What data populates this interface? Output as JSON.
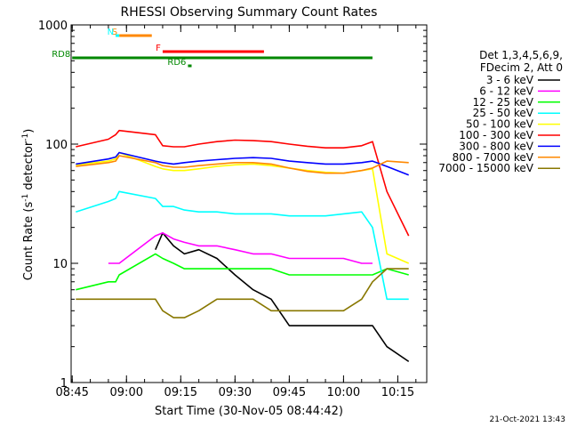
{
  "chart_data": {
    "type": "line",
    "title": "RHESSI Observing Summary Count Rates",
    "xlabel": "Start Time (30-Nov-05 08:44:42)",
    "ylabel": "Count Rate (s-1 detector-1)",
    "ylabel_parts": [
      "Count Rate (s",
      "-1",
      " detector",
      "-1",
      ")"
    ],
    "yscale": "log",
    "xlim": [
      "08:44:42",
      "10:23:00"
    ],
    "ylim": [
      1,
      1000
    ],
    "x_ticks": [
      "08:45",
      "09:00",
      "09:15",
      "09:30",
      "09:45",
      "10:00",
      "10:15"
    ],
    "y_ticks": [
      "1",
      "10",
      "100",
      "1000"
    ],
    "legend_header": [
      "Det 1,3,4,5,6,9,",
      "FDecim 2, Att 0"
    ],
    "legend_position": "right",
    "timestamp": "21-Oct-2021 13:43",
    "series": [
      {
        "name": "3 - 6 keV",
        "color": "#000000",
        "x": [
          "08:46",
          "08:55",
          "08:57",
          "08:58",
          "09:08",
          "09:10",
          "09:13",
          "09:16",
          "09:20",
          "09:25",
          "09:30",
          "09:35",
          "09:40",
          "09:45",
          "09:50",
          "09:55",
          "10:00",
          "10:05",
          "10:08",
          "10:12",
          "10:18"
        ],
        "y": [
          null,
          null,
          null,
          null,
          13,
          18,
          14,
          12,
          13,
          11,
          8,
          6,
          5,
          3,
          3,
          3,
          3,
          3,
          3,
          2,
          1.5
        ]
      },
      {
        "name": "6 - 12 keV",
        "color": "#ff00ff",
        "x": [
          "08:46",
          "08:55",
          "08:57",
          "08:58",
          "09:08",
          "09:10",
          "09:13",
          "09:16",
          "09:20",
          "09:25",
          "09:30",
          "09:35",
          "09:40",
          "09:45",
          "09:50",
          "09:55",
          "10:00",
          "10:05",
          "10:08",
          "10:12",
          "10:18"
        ],
        "y": [
          null,
          10,
          10,
          10,
          17,
          18,
          16,
          15,
          14,
          14,
          13,
          12,
          12,
          11,
          11,
          11,
          11,
          10,
          10,
          null,
          null
        ]
      },
      {
        "name": "12 - 25 keV",
        "color": "#00ff00",
        "x": [
          "08:46",
          "08:55",
          "08:57",
          "08:58",
          "09:08",
          "09:10",
          "09:13",
          "09:16",
          "09:20",
          "09:25",
          "09:30",
          "09:35",
          "09:40",
          "09:45",
          "09:50",
          "09:55",
          "10:00",
          "10:05",
          "10:08",
          "10:12",
          "10:18"
        ],
        "y": [
          6,
          7,
          7,
          8,
          12,
          11,
          10,
          9,
          9,
          9,
          9,
          9,
          9,
          8,
          8,
          8,
          8,
          8,
          8,
          9,
          8
        ]
      },
      {
        "name": "25 - 50 keV",
        "color": "#00ffff",
        "x": [
          "08:46",
          "08:55",
          "08:57",
          "08:58",
          "09:08",
          "09:10",
          "09:13",
          "09:16",
          "09:20",
          "09:25",
          "09:30",
          "09:35",
          "09:40",
          "09:45",
          "09:50",
          "09:55",
          "10:00",
          "10:05",
          "10:08",
          "10:12",
          "10:18"
        ],
        "y": [
          27,
          33,
          35,
          40,
          35,
          30,
          30,
          28,
          27,
          27,
          26,
          26,
          26,
          25,
          25,
          25,
          26,
          27,
          20,
          5,
          5
        ]
      },
      {
        "name": "50 - 100 keV",
        "color": "#ffff00",
        "x": [
          "08:46",
          "08:55",
          "08:57",
          "08:58",
          "09:08",
          "09:10",
          "09:13",
          "09:16",
          "09:20",
          "09:25",
          "09:30",
          "09:35",
          "09:40",
          "09:45",
          "09:50",
          "09:55",
          "10:00",
          "10:05",
          "10:08",
          "10:12",
          "10:18"
        ],
        "y": [
          67,
          72,
          75,
          85,
          65,
          62,
          60,
          60,
          62,
          65,
          67,
          68,
          66,
          63,
          60,
          58,
          57,
          60,
          62,
          12,
          10
        ]
      },
      {
        "name": "100 - 300 keV",
        "color": "#ff0000",
        "x": [
          "08:46",
          "08:55",
          "08:57",
          "08:58",
          "09:08",
          "09:10",
          "09:13",
          "09:16",
          "09:20",
          "09:25",
          "09:30",
          "09:35",
          "09:40",
          "09:45",
          "09:50",
          "09:55",
          "10:00",
          "10:05",
          "10:08",
          "10:12",
          "10:18"
        ],
        "y": [
          95,
          110,
          120,
          130,
          120,
          97,
          95,
          95,
          100,
          105,
          108,
          107,
          105,
          100,
          96,
          93,
          93,
          97,
          105,
          40,
          17
        ]
      },
      {
        "name": "300 - 800 keV",
        "color": "#0000ff",
        "x": [
          "08:46",
          "08:55",
          "08:57",
          "08:58",
          "09:08",
          "09:10",
          "09:13",
          "09:16",
          "09:20",
          "09:25",
          "09:30",
          "09:35",
          "09:40",
          "09:45",
          "09:50",
          "09:55",
          "10:00",
          "10:05",
          "10:08",
          "10:12",
          "10:18"
        ],
        "y": [
          68,
          75,
          78,
          85,
          72,
          70,
          68,
          70,
          72,
          74,
          76,
          77,
          76,
          72,
          70,
          68,
          68,
          70,
          72,
          65,
          55
        ]
      },
      {
        "name": "800 - 7000 keV",
        "color": "#ff8800",
        "x": [
          "08:46",
          "08:55",
          "08:57",
          "08:58",
          "09:08",
          "09:10",
          "09:13",
          "09:16",
          "09:20",
          "09:25",
          "09:30",
          "09:35",
          "09:40",
          "09:45",
          "09:50",
          "09:55",
          "10:00",
          "10:05",
          "10:08",
          "10:12",
          "10:18"
        ],
        "y": [
          65,
          70,
          72,
          80,
          70,
          66,
          64,
          64,
          66,
          68,
          70,
          70,
          68,
          63,
          59,
          57,
          57,
          60,
          63,
          72,
          70
        ]
      },
      {
        "name": "7000 - 15000 keV",
        "color": "#887700",
        "x": [
          "08:46",
          "08:55",
          "08:57",
          "08:58",
          "09:08",
          "09:10",
          "09:13",
          "09:16",
          "09:20",
          "09:25",
          "09:30",
          "09:35",
          "09:40",
          "09:45",
          "09:50",
          "09:55",
          "10:00",
          "10:05",
          "10:08",
          "10:12",
          "10:18"
        ],
        "y": [
          5,
          5,
          5,
          5,
          5,
          4,
          3.5,
          3.5,
          4,
          5,
          5,
          5,
          4,
          4,
          4,
          4,
          4,
          5,
          7,
          9,
          9
        ]
      }
    ],
    "intervals": [
      {
        "label": "S",
        "color": "#ff8800",
        "start": "08:58",
        "end": "09:07"
      },
      {
        "label": "N",
        "color": "#00ffff",
        "start": "08:57",
        "end": "08:58"
      },
      {
        "label": "F",
        "color": "#ff0000",
        "start": "09:10",
        "end": "09:38"
      },
      {
        "label": "RD6",
        "color": "#008800",
        "start": "09:17",
        "end": "09:18"
      },
      {
        "label": "RD8",
        "color": "#008800",
        "start": "08:45",
        "end": "10:08"
      }
    ]
  }
}
